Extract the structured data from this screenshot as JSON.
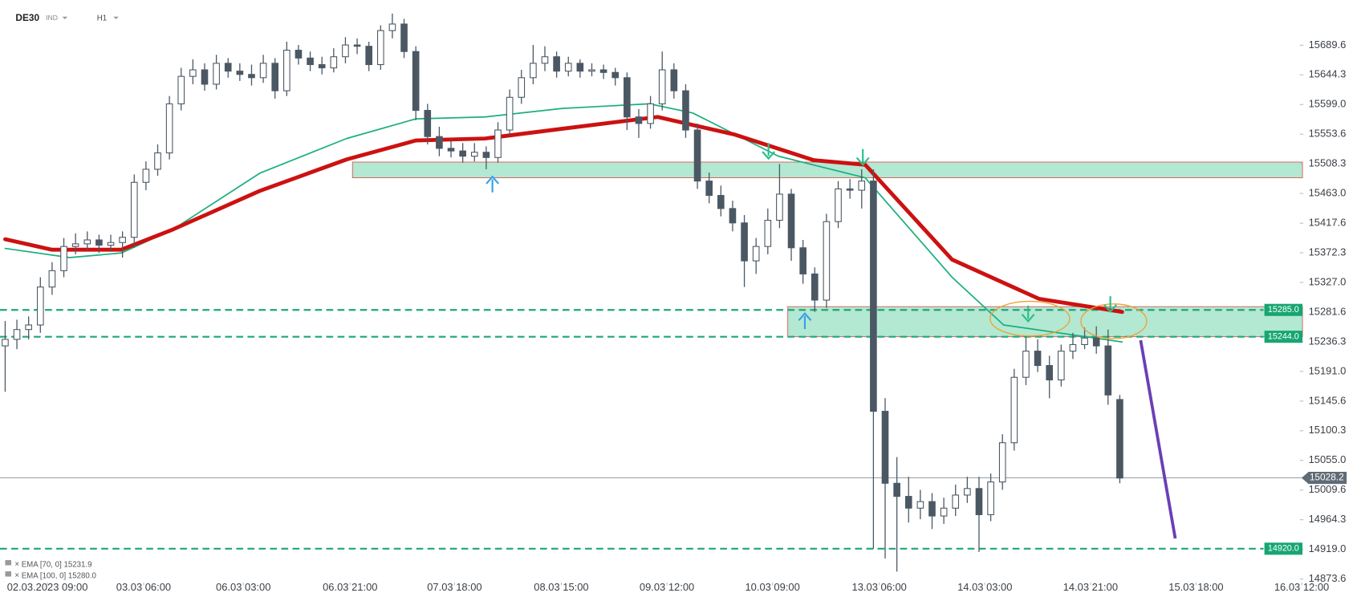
{
  "chart_data": {
    "type": "candlestick",
    "symbol": "DE30",
    "market": "IND",
    "timeframe": "H1",
    "xlim": [
      -0.44,
      110.2
    ],
    "ylim": [
      14869.5,
      15758.4
    ],
    "yticks": [
      15689.6,
      15644.3,
      {
        "value": 15599,
        "label": "15599.0"
      },
      15553.6,
      15508.3,
      {
        "value": 15463,
        "label": "15463.0"
      },
      15417.6,
      15372.3,
      {
        "value": 15327,
        "label": "15327.0"
      },
      15281.6,
      15236.3,
      {
        "value": 15191,
        "label": "15191.0"
      },
      15145.6,
      15100.3,
      {
        "value": 15055,
        "label": "15055.0"
      },
      15009.6,
      14964.3,
      {
        "value": 14919,
        "label": "14919.0"
      },
      14873.6
    ],
    "xticks": [
      {
        "value": 3.6,
        "label": "02.03.2023  09:00"
      },
      {
        "value": 11.8,
        "label": "03.03  06:00"
      },
      {
        "value": 20.3,
        "label": "06.03  03:00"
      },
      {
        "value": 29.4,
        "label": "06.03  21:00"
      },
      {
        "value": 38.3,
        "label": "07.03  18:00"
      },
      {
        "value": 47.4,
        "label": "08.03  15:00"
      },
      {
        "value": 56.4,
        "label": "09.03  12:00"
      },
      {
        "value": 65.4,
        "label": "10.03  09:00"
      },
      {
        "value": 74.5,
        "label": "13.03  06:00"
      },
      {
        "value": 83.5,
        "label": "14.03  03:00"
      },
      {
        "value": 92.5,
        "label": "14.03  21:00"
      },
      {
        "value": 101.5,
        "label": "15.03  18:00"
      },
      {
        "value": 110.5,
        "label": "16.03  12:00"
      }
    ],
    "up_color": "#ffffff",
    "down_color": "#4b5864",
    "ohlc": [
      [
        15230,
        15268,
        15160,
        15240
      ],
      [
        15240,
        15270,
        15225,
        15255
      ],
      [
        15255,
        15275,
        15240,
        15262
      ],
      [
        15262,
        15335,
        15250,
        15320
      ],
      [
        15320,
        15358,
        15308,
        15345
      ],
      [
        15345,
        15395,
        15335,
        15382
      ],
      [
        15382,
        15402,
        15370,
        15386
      ],
      [
        15386,
        15405,
        15375,
        15392
      ],
      [
        15392,
        15400,
        15372,
        15384
      ],
      [
        15384,
        15400,
        15374,
        15388
      ],
      [
        15388,
        15405,
        15365,
        15396
      ],
      [
        15396,
        15492,
        15380,
        15480
      ],
      [
        15480,
        15512,
        15468,
        15500
      ],
      [
        15500,
        15538,
        15490,
        15525
      ],
      [
        15525,
        15612,
        15515,
        15600
      ],
      [
        15600,
        15655,
        15590,
        15642
      ],
      [
        15642,
        15668,
        15630,
        15652
      ],
      [
        15652,
        15662,
        15620,
        15630
      ],
      [
        15630,
        15675,
        15622,
        15662
      ],
      [
        15662,
        15670,
        15640,
        15650
      ],
      [
        15650,
        15662,
        15635,
        15645
      ],
      [
        15645,
        15660,
        15628,
        15640
      ],
      [
        15640,
        15675,
        15632,
        15662
      ],
      [
        15662,
        15670,
        15608,
        15620
      ],
      [
        15620,
        15695,
        15612,
        15682
      ],
      [
        15682,
        15690,
        15660,
        15670
      ],
      [
        15670,
        15680,
        15650,
        15660
      ],
      [
        15660,
        15672,
        15645,
        15655
      ],
      [
        15655,
        15685,
        15648,
        15672
      ],
      [
        15672,
        15702,
        15662,
        15690
      ],
      [
        15690,
        15700,
        15676,
        15688
      ],
      [
        15688,
        15695,
        15650,
        15660
      ],
      [
        15660,
        15720,
        15652,
        15712
      ],
      [
        15712,
        15738,
        15700,
        15722
      ],
      [
        15722,
        15730,
        15670,
        15680
      ],
      [
        15680,
        15688,
        15575,
        15590
      ],
      [
        15590,
        15600,
        15538,
        15550
      ],
      [
        15550,
        15565,
        15520,
        15532
      ],
      [
        15532,
        15545,
        15518,
        15528
      ],
      [
        15528,
        15540,
        15510,
        15520
      ],
      [
        15520,
        15540,
        15512,
        15526
      ],
      [
        15526,
        15535,
        15500,
        15518
      ],
      [
        15518,
        15572,
        15510,
        15560
      ],
      [
        15560,
        15622,
        15552,
        15610
      ],
      [
        15610,
        15652,
        15600,
        15640
      ],
      [
        15640,
        15690,
        15630,
        15662
      ],
      [
        15662,
        15688,
        15650,
        15672
      ],
      [
        15672,
        15680,
        15640,
        15650
      ],
      [
        15650,
        15672,
        15642,
        15662
      ],
      [
        15662,
        15668,
        15640,
        15650
      ],
      [
        15650,
        15662,
        15642,
        15652
      ],
      [
        15652,
        15660,
        15638,
        15648
      ],
      [
        15648,
        15655,
        15628,
        15640
      ],
      [
        15640,
        15648,
        15560,
        15580
      ],
      [
        15580,
        15592,
        15548,
        15570
      ],
      [
        15570,
        15612,
        15562,
        15600
      ],
      [
        15600,
        15680,
        15590,
        15652
      ],
      [
        15652,
        15662,
        15608,
        15620
      ],
      [
        15620,
        15630,
        15548,
        15560
      ],
      [
        15560,
        15570,
        15470,
        15482
      ],
      [
        15482,
        15495,
        15448,
        15460
      ],
      [
        15460,
        15475,
        15428,
        15440
      ],
      [
        15440,
        15452,
        15405,
        15418
      ],
      [
        15418,
        15430,
        15320,
        15360
      ],
      [
        15360,
        15395,
        15340,
        15382
      ],
      [
        15382,
        15440,
        15370,
        15422
      ],
      [
        15422,
        15508,
        15410,
        15462
      ],
      [
        15462,
        15470,
        15360,
        15380
      ],
      [
        15380,
        15392,
        15325,
        15340
      ],
      [
        15340,
        15350,
        15282,
        15300
      ],
      [
        15300,
        15432,
        15288,
        15420
      ],
      [
        15420,
        15482,
        15410,
        15470
      ],
      [
        15470,
        15485,
        15455,
        15468
      ],
      [
        15468,
        15500,
        15440,
        15482
      ],
      [
        15482,
        15500,
        14920,
        15130
      ],
      [
        15130,
        15150,
        14905,
        15020
      ],
      [
        15020,
        15060,
        14885,
        15000
      ],
      [
        15000,
        15030,
        14960,
        14982
      ],
      [
        14982,
        15010,
        14965,
        14992
      ],
      [
        14992,
        15005,
        14950,
        14970
      ],
      [
        14970,
        14998,
        14958,
        14982
      ],
      [
        14982,
        15018,
        14970,
        15002
      ],
      [
        15002,
        15030,
        14990,
        15012
      ],
      [
        15012,
        15030,
        14915,
        14972
      ],
      [
        14972,
        15035,
        14962,
        15022
      ],
      [
        15022,
        15095,
        15010,
        15082
      ],
      [
        15082,
        15195,
        15070,
        15182
      ],
      [
        15182,
        15245,
        15170,
        15222
      ],
      [
        15222,
        15240,
        15190,
        15200
      ],
      [
        15200,
        15215,
        15150,
        15178
      ],
      [
        15178,
        15232,
        15168,
        15222
      ],
      [
        15222,
        15250,
        15210,
        15232
      ],
      [
        15232,
        15258,
        15225,
        15242
      ],
      [
        15242,
        15260,
        15218,
        15230
      ],
      [
        15230,
        15255,
        15140,
        15155
      ],
      [
        15148,
        15155,
        15020,
        15028
      ]
    ],
    "indicators": [
      {
        "name": "EMA [70, 0]",
        "current": 15231.9,
        "color": "#1aaf7e",
        "width": 1.6,
        "x": [
          0,
          5.5,
          9.9,
          14.3,
          21.7,
          29.1,
          35,
          40.9,
          47.5,
          54.9,
          58.6,
          65.9,
          73.3,
          80.7,
          85.1,
          95.2
        ],
        "values": [
          15379,
          15365,
          15372,
          15408,
          15494,
          15547,
          15577,
          15580,
          15593,
          15600,
          15586,
          15520,
          15487,
          15335,
          15262,
          15236
        ]
      },
      {
        "name": "EMA [100, 0]",
        "current": {
          "value": 15280,
          "label": "15280.0"
        },
        "color": "#cc1111",
        "width": 4.5,
        "x": [
          0,
          4,
          9.9,
          14.3,
          21.7,
          29.1,
          35,
          40.9,
          47.5,
          55.6,
          62.2,
          68.9,
          73.3,
          80.7,
          88.1,
          95.2
        ],
        "values": [
          15393,
          15377,
          15377,
          15408,
          15467,
          15515,
          15544,
          15547,
          15562,
          15580,
          15553,
          15514,
          15507,
          15362,
          15302,
          15282
        ]
      }
    ],
    "zones": [
      {
        "low": 15487,
        "high": 15511,
        "start": 29.6
      },
      {
        "low": 15244,
        "high": 15290,
        "start": 66.7
      }
    ],
    "levels": [
      {
        "value": 15285,
        "label": "15285.0"
      },
      {
        "value": 15244,
        "label": "15244.0"
      },
      {
        "value": 14920,
        "label": "14920.0"
      }
    ],
    "current_price": {
      "value": 15028.2,
      "label": "15028.2"
    }
  }
}
